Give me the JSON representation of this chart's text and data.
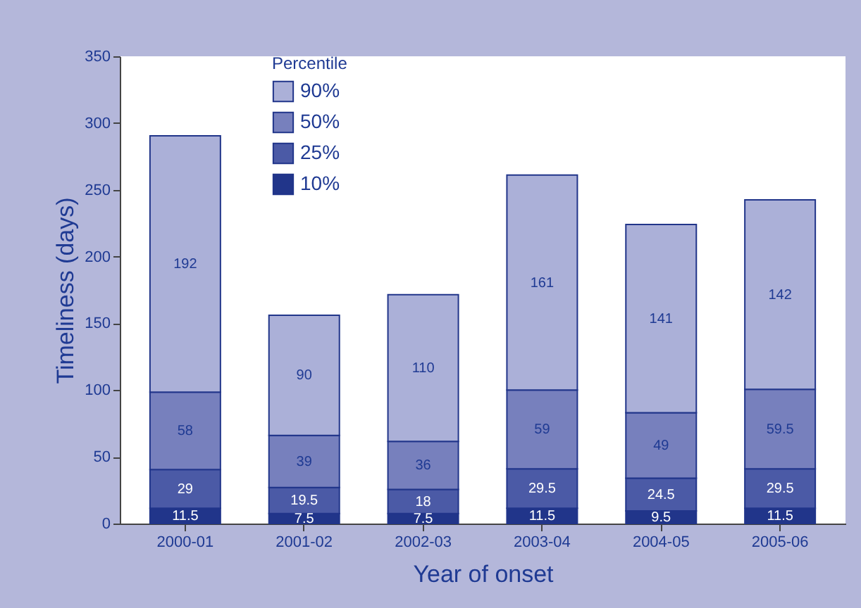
{
  "chart_data": {
    "type": "bar",
    "stacked": true,
    "xlabel": "Year of onset",
    "ylabel": "Timeliness (days)",
    "legend_title": "Percentile",
    "legend": "top left",
    "data_labels": true,
    "grid": false,
    "categories": [
      "2000-01",
      "2001-02",
      "2002-03",
      "2003-04",
      "2004-05",
      "2005-06"
    ],
    "ylim": [
      0,
      350
    ],
    "yticks": [
      0,
      50,
      100,
      150,
      200,
      250,
      300,
      350
    ],
    "series": [
      {
        "name": "10%",
        "color": "#21358a",
        "values": [
          11.5,
          7.5,
          7.5,
          11.5,
          9.5,
          11.5
        ]
      },
      {
        "name": "25%",
        "color": "#4b5aa6",
        "values": [
          29,
          19.5,
          18,
          29.5,
          24.5,
          29.5
        ]
      },
      {
        "name": "50%",
        "color": "#7780bd",
        "values": [
          58,
          39,
          36,
          59,
          49,
          59.5
        ]
      },
      {
        "name": "90%",
        "color": "#abb0d8",
        "values": [
          192,
          90,
          110,
          161,
          141,
          142
        ]
      }
    ]
  }
}
